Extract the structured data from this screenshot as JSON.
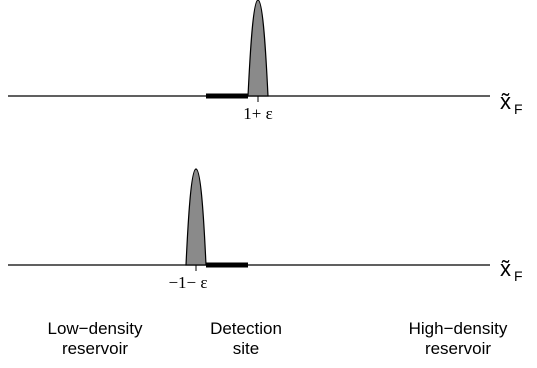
{
  "top_panel": {
    "axis_label": "x̃",
    "axis_subscript": "F",
    "tick_label": "1+ ε"
  },
  "bottom_panel": {
    "axis_label": "x̃",
    "axis_subscript": "F",
    "tick_label": "−1− ε"
  },
  "regions": {
    "left_line1": "Low−density",
    "left_line2": "reservoir",
    "middle_line1": "Detection",
    "middle_line2": "site",
    "right_line1": "High−density",
    "right_line2": "reservoir"
  }
}
